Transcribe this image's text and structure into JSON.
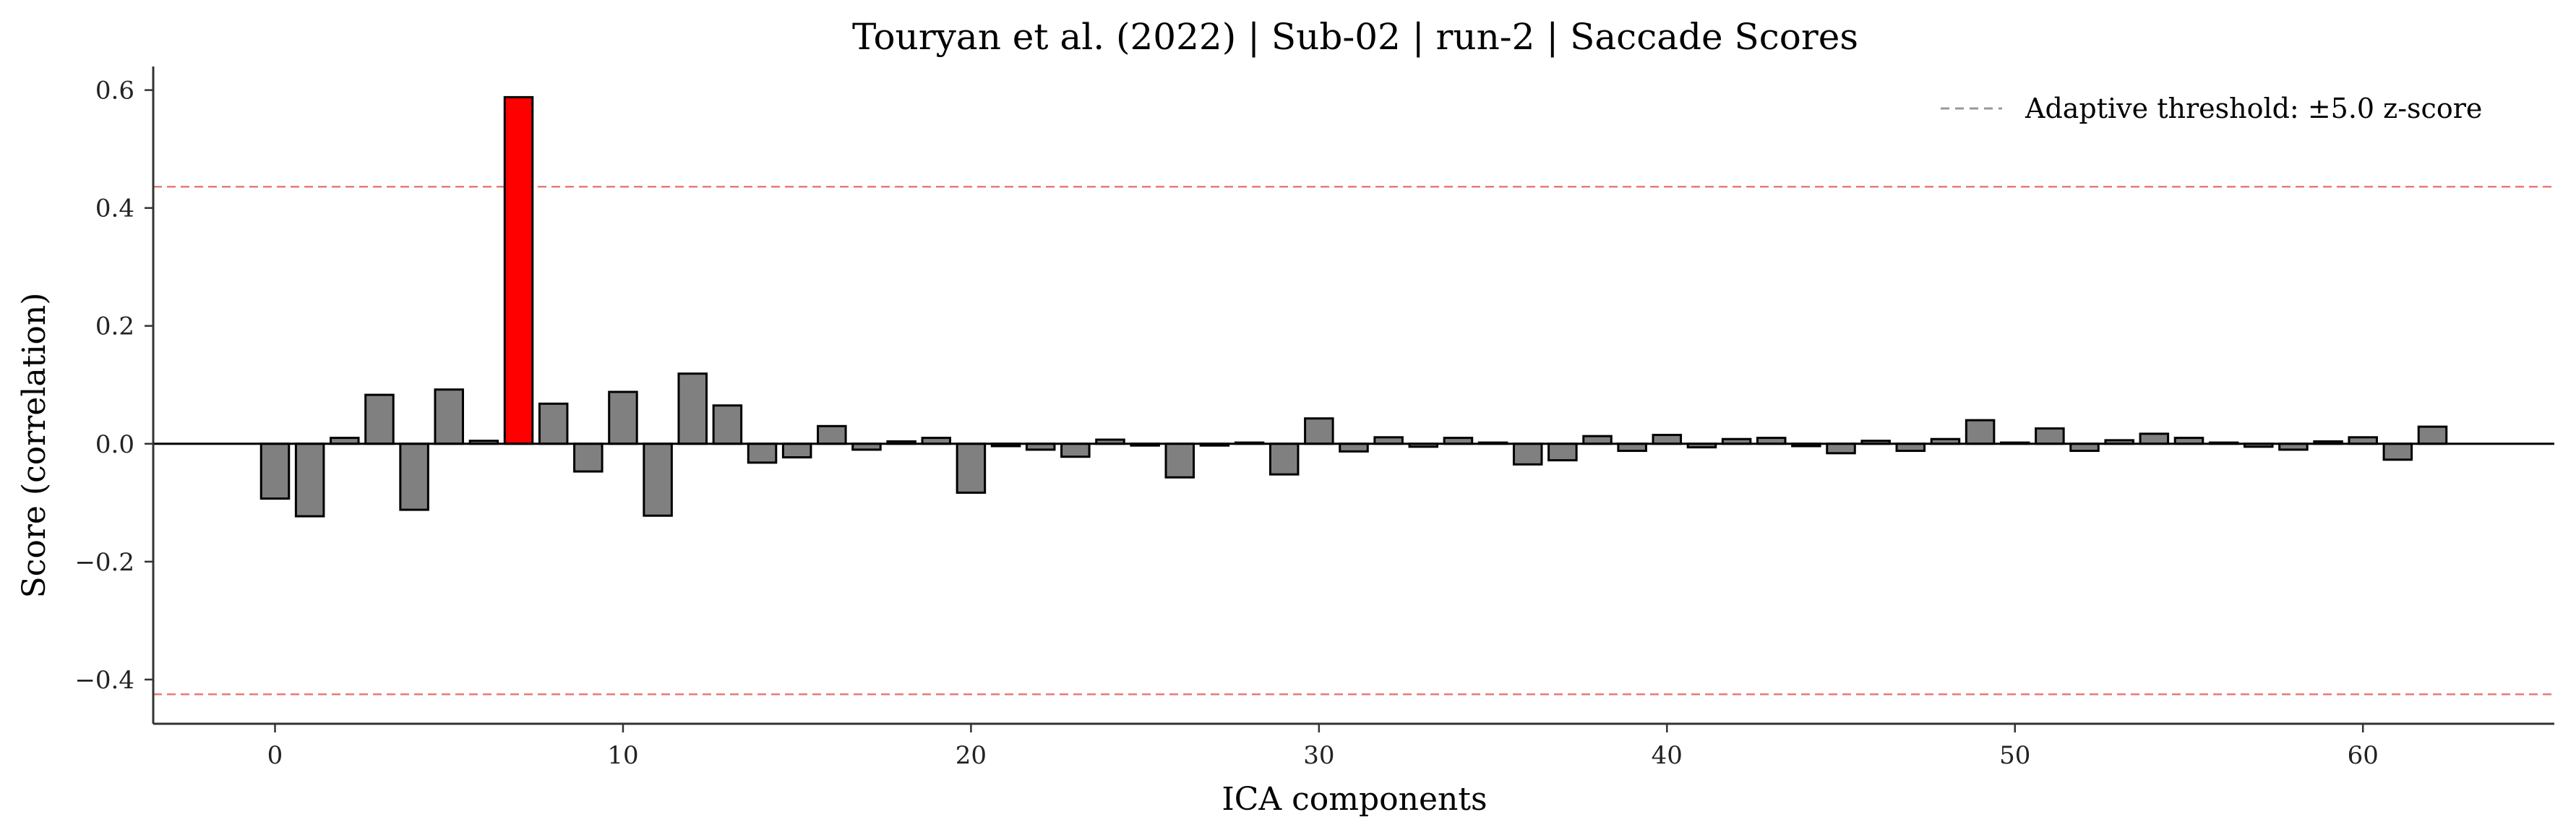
{
  "chart_data": {
    "type": "bar",
    "title": "Touryan et al. (2022) | Sub-02 | run-2 | Saccade Scores",
    "xlabel": "ICA components",
    "ylabel": "Score (correlation)",
    "x": [
      0,
      1,
      2,
      3,
      4,
      5,
      6,
      7,
      8,
      9,
      10,
      11,
      12,
      13,
      14,
      15,
      16,
      17,
      18,
      19,
      20,
      21,
      22,
      23,
      24,
      25,
      26,
      27,
      28,
      29,
      30,
      31,
      32,
      33,
      34,
      35,
      36,
      37,
      38,
      39,
      40,
      41,
      42,
      43,
      44,
      45,
      46,
      47,
      48,
      49,
      50,
      51,
      52,
      53,
      54,
      55,
      56,
      57,
      58,
      59,
      60,
      61,
      62
    ],
    "values": [
      -0.093,
      -0.123,
      0.01,
      0.083,
      -0.112,
      0.092,
      0.005,
      0.588,
      0.068,
      -0.047,
      0.088,
      -0.122,
      0.119,
      0.065,
      -0.032,
      -0.023,
      0.03,
      -0.01,
      0.004,
      0.01,
      -0.083,
      -0.004,
      -0.01,
      -0.022,
      0.007,
      -0.003,
      -0.057,
      -0.003,
      0.002,
      -0.052,
      0.043,
      -0.013,
      0.011,
      -0.005,
      0.01,
      0.002,
      -0.035,
      -0.028,
      0.013,
      -0.012,
      0.015,
      -0.006,
      0.008,
      0.01,
      -0.004,
      -0.016,
      0.005,
      -0.012,
      0.008,
      0.04,
      0.002,
      0.026,
      -0.012,
      0.006,
      0.017,
      0.01,
      0.002,
      -0.005,
      -0.01,
      0.004,
      0.011,
      -0.027,
      0.029
    ],
    "highlight_indices": [
      7
    ],
    "colors": {
      "bar": "#808080",
      "highlight": "#ff0000",
      "edge": "#000000",
      "threshold": "#e87a7a",
      "zero_line": "#000000",
      "legend_line": "#999999"
    },
    "thresholds": [
      0.436,
      -0.425
    ],
    "xlim": [
      -3.5,
      65.5
    ],
    "ylim": [
      -0.475,
      0.64
    ],
    "xticks": [
      0,
      10,
      20,
      30,
      40,
      50,
      60
    ],
    "yticks": [
      -0.4,
      -0.2,
      0.0,
      0.2,
      0.4,
      0.6
    ],
    "ytick_labels": [
      "−0.4",
      "−0.2",
      "0.0",
      "0.2",
      "0.4",
      "0.6"
    ],
    "legend": {
      "position": "top-right",
      "label": "Adaptive threshold: ±5.0 z-score"
    },
    "grid": false
  }
}
